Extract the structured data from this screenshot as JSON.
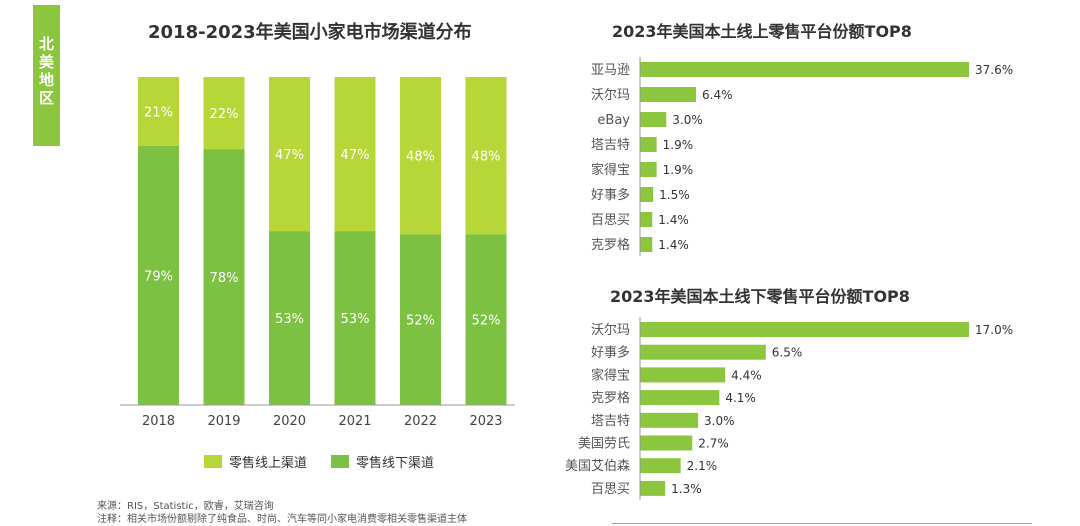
{
  "side_tab": {
    "text": "北美地区"
  },
  "colors": {
    "light_green": "#b7d739",
    "dark_green": "#7cc142",
    "bar_green": "#8cc63f",
    "axis": "#999999"
  },
  "chart_data": [
    {
      "type": "bar",
      "stacked": true,
      "title": "2018-2023年美国小家电市场渠道分布",
      "categories": [
        "2018",
        "2019",
        "2020",
        "2021",
        "2022",
        "2023"
      ],
      "series": [
        {
          "name": "零售线上渠道",
          "values": [
            21,
            22,
            47,
            47,
            48,
            48
          ],
          "labels": [
            "21%",
            "22%",
            "47%",
            "47%",
            "48%",
            "48%"
          ]
        },
        {
          "name": "零售线下渠道",
          "values": [
            79,
            78,
            53,
            53,
            52,
            52
          ],
          "labels": [
            "79%",
            "78%",
            "53%",
            "53%",
            "52%",
            "52%"
          ]
        }
      ],
      "ylim": [
        0,
        100
      ],
      "legend": "bottom"
    },
    {
      "type": "bar",
      "orientation": "horizontal",
      "title": "2023年美国本土线上零售平台份额TOP8",
      "categories": [
        "亚马逊",
        "沃尔玛",
        "eBay",
        "塔吉特",
        "家得宝",
        "好事多",
        "百思买",
        "克罗格"
      ],
      "values": [
        37.6,
        6.4,
        3.0,
        1.9,
        1.9,
        1.5,
        1.4,
        1.4
      ],
      "labels": [
        "37.6%",
        "6.4%",
        "3.0%",
        "1.9%",
        "1.9%",
        "1.5%",
        "1.4%",
        "1.4%"
      ]
    },
    {
      "type": "bar",
      "orientation": "horizontal",
      "title": "2023年美国本土线下零售平台份额TOP8",
      "categories": [
        "沃尔玛",
        "好事多",
        "家得宝",
        "克罗格",
        "塔吉特",
        "美国劳氏",
        "美国艾伯森",
        "百思买"
      ],
      "values": [
        17.0,
        6.5,
        4.4,
        4.1,
        3.0,
        2.7,
        2.1,
        1.3
      ],
      "labels": [
        "17.0%",
        "6.5%",
        "4.4%",
        "4.1%",
        "3.0%",
        "2.7%",
        "2.1%",
        "1.3%"
      ]
    }
  ],
  "source": {
    "line1": "来源：RIS，Statistic，欧睿，艾瑞咨询",
    "line2": "注释：相关市场份额剔除了纯食品、时尚、汽车等同小家电消费零相关零售渠道主体"
  }
}
